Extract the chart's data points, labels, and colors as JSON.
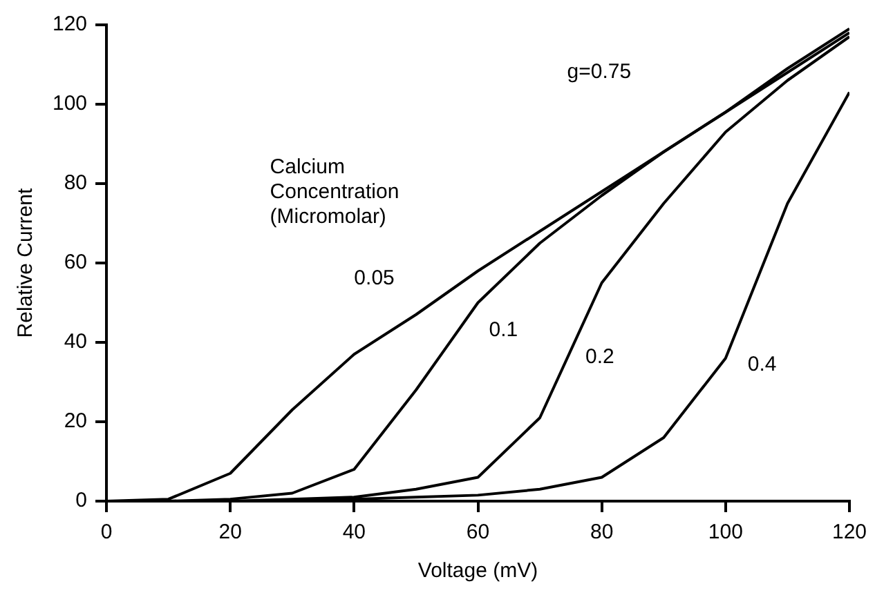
{
  "chart_data": {
    "type": "line",
    "xlabel": "Voltage (mV)",
    "ylabel": "Relative Current",
    "x": [
      0,
      10,
      20,
      30,
      40,
      50,
      60,
      70,
      80,
      90,
      100,
      110,
      120
    ],
    "series": [
      {
        "name": "0.05",
        "color": "#000000",
        "values": [
          0,
          0.5,
          7,
          23,
          37,
          47,
          58,
          68,
          78,
          88,
          98,
          109,
          119
        ]
      },
      {
        "name": "0.1",
        "color": "#000000",
        "values": [
          0,
          0,
          0.5,
          2,
          8,
          28,
          50,
          65,
          77,
          88,
          98,
          108,
          118
        ]
      },
      {
        "name": "0.2",
        "color": "#000000",
        "values": [
          0,
          0,
          0,
          0.5,
          1,
          3,
          6,
          21,
          55,
          75,
          93,
          106,
          117
        ]
      },
      {
        "name": "0.4",
        "color": "#000000",
        "values": [
          0,
          0,
          0,
          0,
          0.5,
          1,
          1.5,
          3,
          6,
          16,
          36,
          75,
          103
        ]
      }
    ],
    "xlim": [
      0,
      120
    ],
    "xticks": [
      0,
      20,
      40,
      60,
      80,
      100,
      120
    ],
    "ylim": [
      0,
      120
    ],
    "yticks": [
      0,
      20,
      40,
      60,
      80,
      100,
      120
    ],
    "grid": false,
    "legend": false,
    "marker": "none",
    "line_style": "solid",
    "annotations": [
      "g=0.75",
      "Calcium\nConcentration\n(Micromolar)"
    ]
  }
}
